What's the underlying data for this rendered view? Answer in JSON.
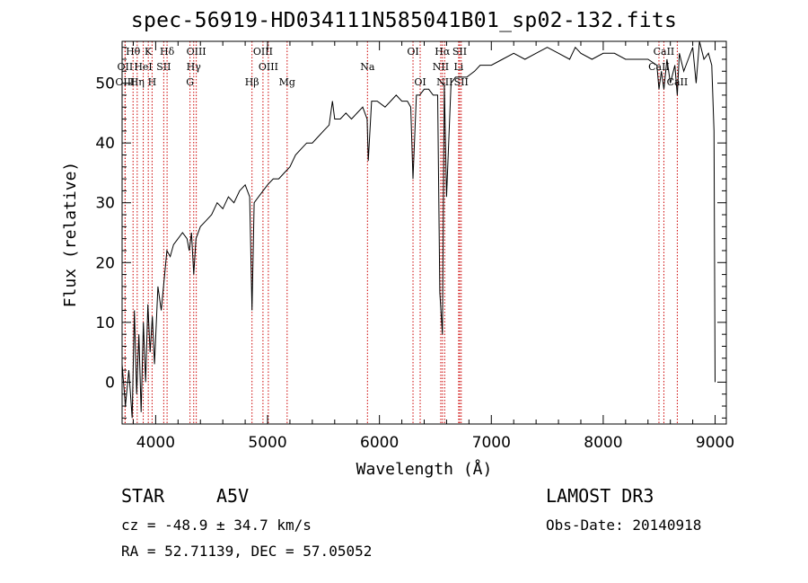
{
  "chart_data": {
    "type": "line",
    "title": "spec-56919-HD034111N585041B01_sp02-132.fits",
    "xlabel": "Wavelength (Å)",
    "ylabel": "Flux (relative)",
    "xlim": [
      3700,
      9100
    ],
    "ylim": [
      -7,
      57
    ],
    "xticks": [
      4000,
      5000,
      6000,
      7000,
      8000,
      9000
    ],
    "yticks": [
      0,
      10,
      20,
      30,
      40,
      50
    ],
    "grid": false,
    "series": [
      {
        "name": "flux",
        "x": [
          3700,
          3730,
          3760,
          3790,
          3810,
          3830,
          3850,
          3870,
          3890,
          3910,
          3930,
          3950,
          3970,
          3990,
          4020,
          4050,
          4080,
          4100,
          4130,
          4160,
          4200,
          4240,
          4280,
          4300,
          4320,
          4340,
          4360,
          4400,
          4450,
          4500,
          4550,
          4600,
          4650,
          4700,
          4750,
          4800,
          4840,
          4861,
          4880,
          4920,
          4960,
          5000,
          5050,
          5100,
          5150,
          5200,
          5250,
          5300,
          5350,
          5400,
          5450,
          5500,
          5550,
          5580,
          5600,
          5650,
          5700,
          5750,
          5800,
          5850,
          5890,
          5900,
          5930,
          5980,
          6050,
          6100,
          6150,
          6200,
          6250,
          6280,
          6300,
          6330,
          6360,
          6400,
          6440,
          6480,
          6520,
          6540,
          6563,
          6580,
          6600,
          6640,
          6680,
          6720,
          6780,
          6850,
          6900,
          7000,
          7100,
          7200,
          7300,
          7400,
          7500,
          7600,
          7700,
          7750,
          7800,
          7900,
          8000,
          8100,
          8200,
          8300,
          8400,
          8480,
          8498,
          8520,
          8542,
          8570,
          8600,
          8640,
          8662,
          8680,
          8720,
          8760,
          8800,
          8830,
          8860,
          8900,
          8940,
          8970,
          8990,
          9000
        ],
        "values": [
          3,
          -4,
          2,
          -6,
          12,
          -2,
          8,
          -5,
          10,
          0,
          13,
          5,
          11,
          3,
          16,
          12,
          18,
          22,
          21,
          23,
          24,
          25,
          24,
          22,
          25,
          18,
          24,
          26,
          27,
          28,
          30,
          29,
          31,
          30,
          32,
          33,
          31,
          12,
          30,
          31,
          32,
          33,
          34,
          34,
          35,
          36,
          38,
          39,
          40,
          40,
          41,
          42,
          43,
          47,
          44,
          44,
          45,
          44,
          45,
          46,
          44,
          37,
          47,
          47,
          46,
          47,
          48,
          47,
          47,
          46,
          34,
          48,
          48,
          49,
          49,
          48,
          48,
          15,
          8,
          50,
          31,
          50,
          51,
          51,
          51,
          52,
          53,
          53,
          54,
          55,
          54,
          55,
          56,
          55,
          54,
          56,
          55,
          54,
          55,
          55,
          54,
          54,
          54,
          53,
          49,
          52,
          49,
          54,
          50,
          53,
          48,
          55,
          52,
          54,
          56,
          50,
          57,
          54,
          55,
          53,
          42,
          0
        ]
      }
    ],
    "line_markers": [
      {
        "label": "Hθ",
        "x": 3798,
        "row": 1
      },
      {
        "label": "K",
        "x": 3934,
        "row": 1
      },
      {
        "label": "Hδ",
        "x": 4102,
        "row": 1
      },
      {
        "label": "OIII",
        "x": 4363,
        "row": 1
      },
      {
        "label": "OIII",
        "x": 4959,
        "row": 1
      },
      {
        "label": "OI",
        "x": 6300,
        "row": 1
      },
      {
        "label": "Hα",
        "x": 6563,
        "row": 1
      },
      {
        "label": "SII",
        "x": 6717,
        "row": 1
      },
      {
        "label": "CaII",
        "x": 8542,
        "row": 1
      },
      {
        "label": "OII",
        "x": 3727,
        "row": 2
      },
      {
        "label": "HeI",
        "x": 3889,
        "row": 2
      },
      {
        "label": "SII",
        "x": 4072,
        "row": 2
      },
      {
        "label": "Hγ",
        "x": 4340,
        "row": 2
      },
      {
        "label": "OIII",
        "x": 5007,
        "row": 2
      },
      {
        "label": "Na",
        "x": 5893,
        "row": 2
      },
      {
        "label": "NII",
        "x": 6548,
        "row": 2
      },
      {
        "label": "Li",
        "x": 6708,
        "row": 2
      },
      {
        "label": "CaII",
        "x": 8498,
        "row": 2
      },
      {
        "label": "OIII",
        "x": 3727,
        "row": 3
      },
      {
        "label": "Hη",
        "x": 3835,
        "row": 3
      },
      {
        "label": "H",
        "x": 3968,
        "row": 3
      },
      {
        "label": "G",
        "x": 4307,
        "row": 3
      },
      {
        "label": "Hβ",
        "x": 4861,
        "row": 3
      },
      {
        "label": "Mg",
        "x": 5175,
        "row": 3
      },
      {
        "label": "OI",
        "x": 6364,
        "row": 3
      },
      {
        "label": "NII",
        "x": 6583,
        "row": 3
      },
      {
        "label": "SII",
        "x": 6731,
        "row": 3
      },
      {
        "label": "CaII",
        "x": 8662,
        "row": 3
      }
    ]
  },
  "info": {
    "object_type": "STAR",
    "spectral_class": "A5V",
    "survey": "LAMOST DR3",
    "redshift_text": "cz = -48.9 ± 34.7 km/s",
    "obs_date_text": "Obs-Date: 20140918",
    "coords_text": "RA =  52.71139, DEC =  57.05052"
  },
  "colors": {
    "line": "#000000",
    "marker": "#cc0000",
    "axis": "#000000"
  }
}
